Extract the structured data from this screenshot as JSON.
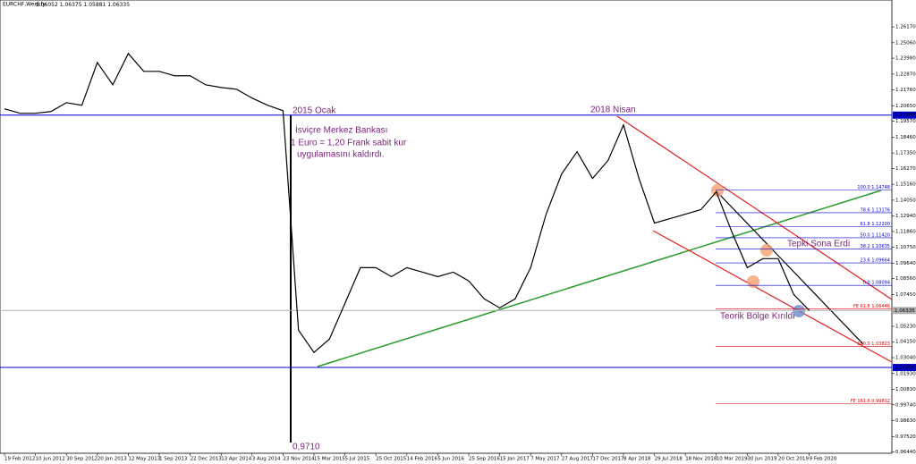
{
  "chart_data": {
    "type": "line",
    "title": "EURCHF,Weekly",
    "quote": [
      1.06052,
      1.06375,
      1.05881,
      1.06335
    ],
    "categories": [
      "19 Feb 2012",
      null,
      "10 Jun 2012",
      null,
      "30 Sep 2012",
      null,
      "20 Jan 2013",
      null,
      "12 May 2013",
      null,
      "1 Sep 2013",
      null,
      "22 Dec 2013",
      null,
      "13 Apr 2014",
      null,
      "3 Aug 2014",
      null,
      "23 Nov 2014",
      null,
      "15 Mar 2015",
      null,
      "5 Jul 2015",
      null,
      "25 Oct 2015",
      null,
      "14 Feb 2016",
      null,
      "5 Jun 2016",
      null,
      "25 Sep 2016",
      null,
      "15 Jan 2017",
      null,
      "7 May 2017",
      null,
      "27 Aug 2017",
      null,
      "17 Dec 2017",
      null,
      "8 Apr 2018",
      null,
      "29 Jul 2018",
      null,
      "18 Nov 2018",
      null,
      "10 Mar 2019",
      null,
      "30 Jun 2019",
      null,
      "20 Oct 2019",
      null,
      "9 Feb 2020"
    ],
    "series": [
      {
        "color": "#000000",
        "values": [
          1.2044,
          1.2013,
          1.2013,
          1.2025,
          1.2087,
          1.2069,
          1.2368,
          1.2212,
          1.2431,
          1.2306,
          1.2306,
          1.2275,
          1.2275,
          1.2212,
          1.2193,
          1.2181,
          1.2119,
          1.2069,
          1.2031,
          1.0496,
          1.034,
          1.0434,
          1.0683,
          1.0933,
          1.0933,
          1.087,
          1.0933,
          1.0902,
          1.087,
          1.0902,
          1.084,
          1.0715,
          1.0652,
          1.0715,
          1.0933,
          1.1307,
          1.1588,
          1.1744,
          1.1557,
          1.1682,
          1.1931,
          1.1557,
          1.1245,
          1.1276,
          1.1307,
          1.1339,
          1.1463,
          1.1183,
          1.0933,
          1.0996,
          1.0996,
          1.0746,
          1.0634
        ]
      }
    ],
    "ylim": [
      0.9635,
      1.2805
    ],
    "yticks": [
      {
        "value": 1.2617,
        "label": "1.26170"
      },
      {
        "value": 1.2506,
        "label": "1.25060"
      },
      {
        "value": 1.2398,
        "label": "1.23980"
      },
      {
        "value": 1.2287,
        "label": "1.22870"
      },
      {
        "value": 1.2176,
        "label": "1.21760"
      },
      {
        "value": 1.2065,
        "label": "1.20650"
      },
      {
        "value": 1.1957,
        "label": "1.19570"
      },
      {
        "value": 1.1846,
        "label": "1.18460"
      },
      {
        "value": 1.1735,
        "label": "1.17350"
      },
      {
        "value": 1.1627,
        "label": "1.16270"
      },
      {
        "value": 1.1516,
        "label": "1.15160"
      },
      {
        "value": 1.1405,
        "label": "1.14050"
      },
      {
        "value": 1.1294,
        "label": "1.12940"
      },
      {
        "value": 1.1186,
        "label": "1.11860"
      },
      {
        "value": 1.1075,
        "label": "1.10750"
      },
      {
        "value": 1.0964,
        "label": "1.09640"
      },
      {
        "value": 1.0856,
        "label": "1.08560"
      },
      {
        "value": 1.0745,
        "label": "1.07450"
      },
      {
        "value": 1.0523,
        "label": "1.05230"
      },
      {
        "value": 1.0415,
        "label": "1.04150"
      },
      {
        "value": 1.0304,
        "label": "1.03040"
      },
      {
        "value": 1.0193,
        "label": "1.01930"
      },
      {
        "value": 1.0083,
        "label": "1.00830"
      },
      {
        "value": 0.9974,
        "label": "0.99740"
      },
      {
        "value": 0.9863,
        "label": "0.98630"
      },
      {
        "value": 0.9752,
        "label": "0.97520"
      },
      {
        "value": 0.9644,
        "label": "0.96440"
      }
    ],
    "levels": [
      {
        "value": 1.2,
        "label": "1.20000",
        "color": "#0000cc"
      },
      {
        "value": 1.06335,
        "label": "1.06335",
        "color": "#b0b0b0"
      },
      {
        "value": 1.0235,
        "label": "1.02350",
        "color": "#0000cc"
      }
    ],
    "fibonacci": [
      {
        "value": 1.14748,
        "label": "100.0 1.14748",
        "color": "#0000cc"
      },
      {
        "value": 1.13176,
        "label": "78.6 1.13176",
        "color": "#0000cc"
      },
      {
        "value": 1.122,
        "label": "61.8 1.12200",
        "color": "#0000cc"
      },
      {
        "value": 1.1142,
        "label": "50.0 1.11420",
        "color": "#0000cc"
      },
      {
        "value": 1.10635,
        "label": "38.2 1.10635",
        "color": "#0000cc"
      },
      {
        "value": 1.09664,
        "label": "23.6 1.09664",
        "color": "#0000cc"
      },
      {
        "value": 1.08094,
        "label": "0.0 1.08094",
        "color": "#0000cc"
      },
      {
        "value": 1.06446,
        "label": "FE 61.8 1.06446",
        "color": "#dd0000"
      },
      {
        "value": 1.03823,
        "label": "100.0 1.03823",
        "color": "#dd0000"
      },
      {
        "value": 0.99812,
        "label": "FE 161.6 0.99812",
        "color": "#dd0000"
      }
    ],
    "annotations": [
      "2015 Ocak",
      "İsviçre Merkez Bankası",
      "1 Euro = 1,20 Frank sabit kur",
      "uygulamasını kaldırdı.",
      "2018 Nisan",
      "Tepki Sona Erdi",
      "Teorik Bölge Kırıldı",
      "0,9710"
    ]
  }
}
